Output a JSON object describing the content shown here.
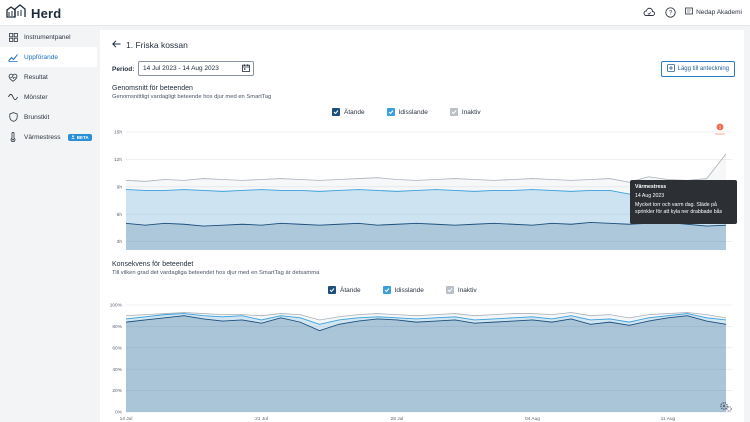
{
  "app": {
    "name": "Herd"
  },
  "topbar": {
    "academy_label": "Nedap Akademi"
  },
  "sidebar": {
    "items": [
      {
        "label": "Instrumentpanel",
        "icon": "dashboard-icon",
        "active": false
      },
      {
        "label": "Uppförande",
        "icon": "trend-icon",
        "active": true
      },
      {
        "label": "Resultat",
        "icon": "results-icon",
        "active": false
      },
      {
        "label": "Mönster",
        "icon": "pattern-icon",
        "active": false
      },
      {
        "label": "Brunstkit",
        "icon": "shield-icon",
        "active": false
      },
      {
        "label": "Värmestress",
        "icon": "thermometer-icon",
        "active": false,
        "badge": "BETA"
      }
    ]
  },
  "page": {
    "title": "1. Friska kossan",
    "period_label": "Period:",
    "period_value": "14 Jul 2023 - 14 Aug 2023",
    "add_note_label": "Lägg till anteckning"
  },
  "legend": {
    "standing": "Ätande",
    "ruminating": "Idisslande",
    "inactive": "Inaktiv"
  },
  "colors": {
    "standing": "#1c4f7c",
    "ruminating": "#3aa0dc",
    "inactive": "#a9b1ba",
    "accent": "#1c6fbf",
    "warning": "#f26b4d"
  },
  "tooltip": {
    "title": "Värmestress",
    "date": "14 Aug 2023",
    "text": "Mycket torr och varm dag. Släde på sprinkler för att kyla ner drabbade bås",
    "marker_count": "1"
  },
  "chart_data": [
    {
      "type": "area",
      "title": "Genomsnitt för beteenden",
      "subtitle": "Genomsnittligt vardagligt beteende hos djur med en SmartTag",
      "y_ticks": [
        "0h",
        "3h",
        "6h",
        "9h",
        "12h",
        "15h"
      ],
      "ylim": [
        0,
        15
      ],
      "x_ticks": [
        "14 Jul",
        "21 Jul",
        "28 Jul",
        "04 Aug",
        "11 Aug"
      ],
      "series": [
        {
          "name": "Ätande",
          "values": [
            5.0,
            4.8,
            5.0,
            4.9,
            4.7,
            4.8,
            4.9,
            4.8,
            5.0,
            4.9,
            4.8,
            4.9,
            5.0,
            4.8,
            4.9,
            5.0,
            4.9,
            4.8,
            4.9,
            5.0,
            4.9,
            4.8,
            5.0,
            4.9,
            5.1,
            5.0,
            4.9,
            5.0,
            5.1,
            4.9,
            4.7,
            4.8
          ]
        },
        {
          "name": "Idisslande",
          "values": [
            8.7,
            8.6,
            8.6,
            8.7,
            8.6,
            8.5,
            8.6,
            8.7,
            8.6,
            8.6,
            8.5,
            8.6,
            8.7,
            8.6,
            8.5,
            8.6,
            8.7,
            8.6,
            8.5,
            8.6,
            8.6,
            8.7,
            8.6,
            8.5,
            8.6,
            8.6,
            8.2,
            8.3,
            8.3,
            8.3,
            8.4,
            8.2
          ]
        },
        {
          "name": "Inaktiv",
          "values": [
            9.7,
            9.6,
            9.8,
            9.7,
            9.9,
            9.8,
            9.7,
            9.8,
            9.9,
            9.8,
            9.7,
            9.8,
            9.9,
            10.0,
            9.8,
            9.7,
            9.8,
            9.9,
            9.8,
            9.7,
            9.8,
            9.9,
            9.8,
            9.7,
            9.8,
            9.9,
            9.5,
            10.1,
            9.8,
            9.7,
            9.9,
            12.6
          ]
        }
      ]
    },
    {
      "type": "area",
      "title": "Konsekvens för beteendet",
      "subtitle": "Till vilken grad det vardagliga beteendet hos djur med en SmartTag är detsamma",
      "y_ticks": [
        "0%",
        "20%",
        "40%",
        "60%",
        "80%",
        "100%"
      ],
      "ylim": [
        0,
        100
      ],
      "x_ticks": [
        "14 Jul",
        "21 Jul",
        "28 Jul",
        "04 Aug",
        "11 Aug"
      ],
      "series": [
        {
          "name": "Ätande",
          "values": [
            84,
            86,
            88,
            90,
            87,
            85,
            86,
            83,
            88,
            84,
            76,
            82,
            85,
            87,
            86,
            84,
            85,
            86,
            83,
            84,
            85,
            86,
            84,
            87,
            82,
            84,
            81,
            85,
            88,
            90,
            85,
            82
          ]
        },
        {
          "name": "Idisslande",
          "values": [
            87,
            89,
            91,
            92,
            90,
            89,
            90,
            86,
            90,
            88,
            82,
            86,
            88,
            89,
            88,
            87,
            88,
            89,
            86,
            87,
            88,
            89,
            87,
            90,
            86,
            87,
            84,
            88,
            90,
            92,
            88,
            86
          ]
        },
        {
          "name": "Inaktiv",
          "values": [
            90,
            91,
            92,
            93,
            92,
            91,
            91,
            90,
            92,
            91,
            86,
            89,
            91,
            92,
            91,
            90,
            91,
            92,
            90,
            91,
            92,
            92,
            91,
            93,
            90,
            91,
            88,
            91,
            92,
            93,
            91,
            88
          ]
        }
      ]
    }
  ]
}
